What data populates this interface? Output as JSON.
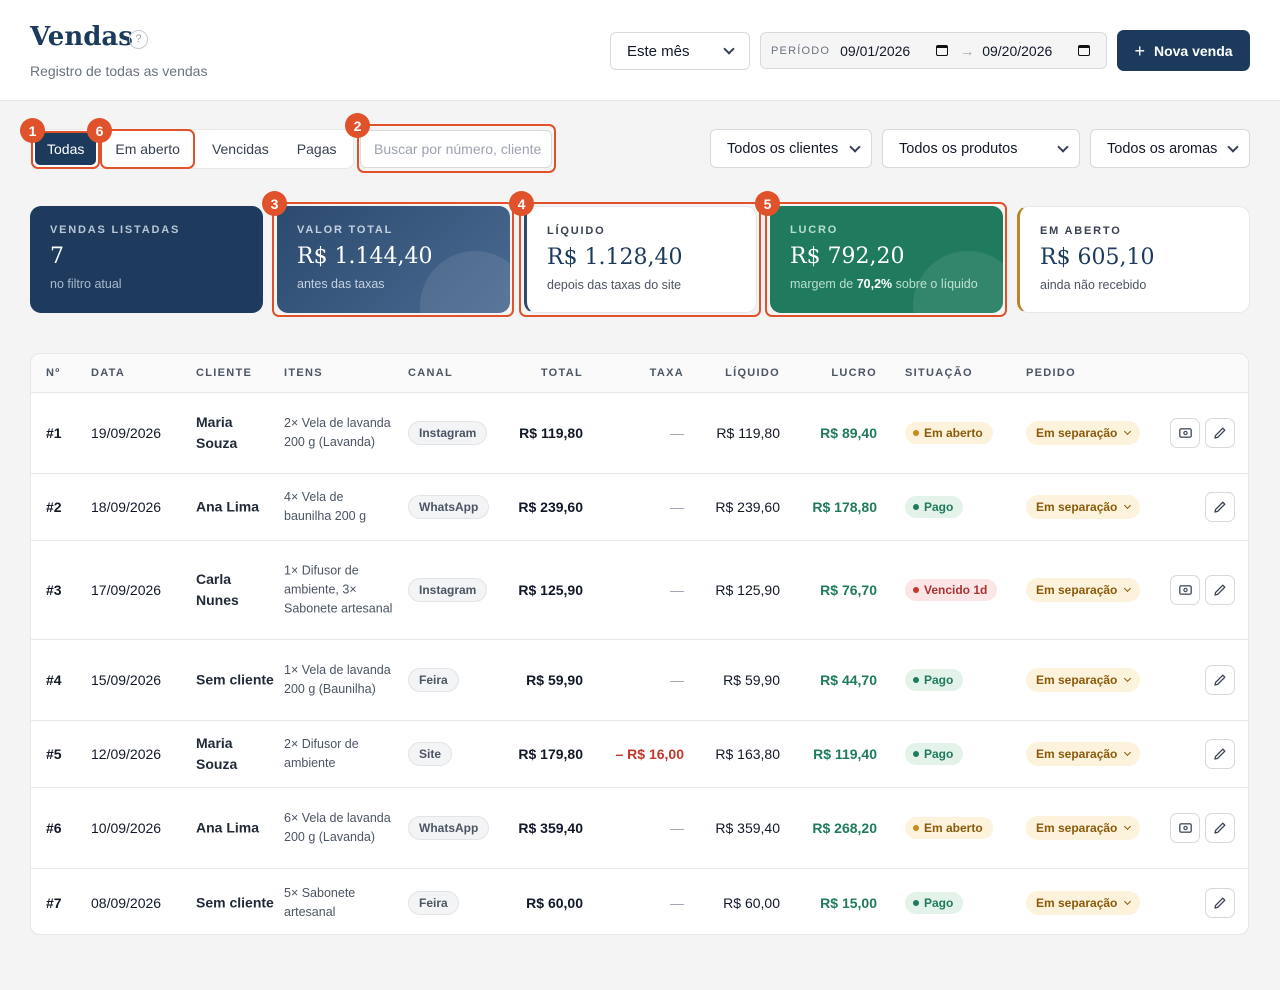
{
  "header": {
    "title": "Vendas",
    "help": "?",
    "subtitle": "Registro de todas as vendas",
    "period_select": "Este mês",
    "date_label": "PERÍODO",
    "date_from": "09/01/2026",
    "date_to": "09/20/2026",
    "new_sale": "Nova venda"
  },
  "filters": {
    "tabs": [
      "Todas",
      "Em aberto",
      "Vencidas",
      "Pagas"
    ],
    "search_placeholder": "Buscar por número, cliente",
    "clients": "Todos os clientes",
    "products": "Todos os produtos",
    "aromas": "Todos os aromas"
  },
  "annotations": [
    "1",
    "6",
    "2",
    "3",
    "4",
    "5"
  ],
  "kpis": {
    "listed": {
      "label": "VENDAS LISTADAS",
      "value": "7",
      "sub": "no filtro atual"
    },
    "total": {
      "label": "VALOR TOTAL",
      "value": "R$ 1.144,40",
      "sub": "antes das taxas"
    },
    "net": {
      "label": "LÍQUIDO",
      "value": "R$ 1.128,40",
      "sub": "depois das taxas do site"
    },
    "profit": {
      "label": "LUCRO",
      "value": "R$ 792,20",
      "sub_prefix": "margem de",
      "sub_pct": "70,2%",
      "sub_suffix": "sobre o líquido"
    },
    "open": {
      "label": "EM ABERTO",
      "value": "R$ 605,10",
      "sub": "ainda não recebido"
    }
  },
  "table": {
    "headers": [
      "Nº",
      "DATA",
      "CLIENTE",
      "ITENS",
      "CANAL",
      "TOTAL",
      "TAXA",
      "LÍQUIDO",
      "LUCRO",
      "SITUAÇÃO",
      "PEDIDO"
    ],
    "rows": [
      {
        "num": "#1",
        "date": "19/09/2026",
        "client": "Maria Souza",
        "items": "2× Vela de lavanda 200 g (Lavanda)",
        "canal": "Instagram",
        "total": "R$ 119,80",
        "taxa": "—",
        "liquido": "R$ 119,80",
        "lucro": "R$ 89,40",
        "situacao": "Em aberto",
        "pedido": "Em separação"
      },
      {
        "num": "#2",
        "date": "18/09/2026",
        "client": "Ana Lima",
        "items": "4× Vela de baunilha 200 g",
        "canal": "WhatsApp",
        "total": "R$ 239,60",
        "taxa": "—",
        "liquido": "R$ 239,60",
        "lucro": "R$ 178,80",
        "situacao": "Pago",
        "pedido": "Em separação"
      },
      {
        "num": "#3",
        "date": "17/09/2026",
        "client": "Carla Nunes",
        "items": "1× Difusor de ambiente, 3× Sabonete artesanal",
        "canal": "Instagram",
        "total": "R$ 125,90",
        "taxa": "—",
        "liquido": "R$ 125,90",
        "lucro": "R$ 76,70",
        "situacao": "Vencido 1d",
        "pedido": "Em separação"
      },
      {
        "num": "#4",
        "date": "15/09/2026",
        "client": "Sem cliente",
        "items": "1× Vela de lavanda 200 g (Baunilha)",
        "canal": "Feira",
        "total": "R$ 59,90",
        "taxa": "—",
        "liquido": "R$ 59,90",
        "lucro": "R$ 44,70",
        "situacao": "Pago",
        "pedido": "Em separação"
      },
      {
        "num": "#5",
        "date": "12/09/2026",
        "client": "Maria Souza",
        "items": "2× Difusor de ambiente",
        "canal": "Site",
        "total": "R$ 179,80",
        "taxa": "– R$ 16,00",
        "liquido": "R$ 163,80",
        "lucro": "R$ 119,40",
        "situacao": "Pago",
        "pedido": "Em separação"
      },
      {
        "num": "#6",
        "date": "10/09/2026",
        "client": "Ana Lima",
        "items": "6× Vela de lavanda 200 g (Lavanda)",
        "canal": "WhatsApp",
        "total": "R$ 359,40",
        "taxa": "—",
        "liquido": "R$ 359,40",
        "lucro": "R$ 268,20",
        "situacao": "Em aberto",
        "pedido": "Em separação"
      },
      {
        "num": "#7",
        "date": "08/09/2026",
        "client": "Sem cliente",
        "items": "5× Sabonete artesanal",
        "canal": "Feira",
        "total": "R$ 60,00",
        "taxa": "—",
        "liquido": "R$ 60,00",
        "lucro": "R$ 15,00",
        "situacao": "Pago",
        "pedido": "Em separação"
      }
    ]
  }
}
